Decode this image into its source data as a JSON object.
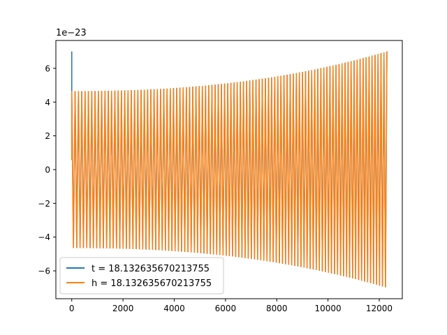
{
  "chart_data": {
    "type": "line",
    "title": "",
    "xlabel": "",
    "ylabel": "",
    "offset_label": "1e−23",
    "xlim": [
      -620,
      12900
    ],
    "ylim": [
      -7.65,
      7.65
    ],
    "x_ticks": [
      0,
      2000,
      4000,
      6000,
      8000,
      10000,
      12000
    ],
    "x_tick_labels": [
      "0",
      "2000",
      "4000",
      "6000",
      "8000",
      "10000",
      "12000"
    ],
    "y_ticks": [
      -6,
      -4,
      -2,
      0,
      2,
      4,
      6
    ],
    "y_tick_labels": [
      "−6",
      "−4",
      "−2",
      "0",
      "2",
      "4",
      "6"
    ],
    "grid": false,
    "legend_position": "lower-left",
    "signal": {
      "x_start": 0,
      "x_end": 12300,
      "start_value": 7.0,
      "start_amplitude": 4.65,
      "end_amplitude": 7.0,
      "x_peak_shift": 300,
      "n_cycles": 200
    },
    "series": [
      {
        "name": "t = 18.132635670213755",
        "color": "#1f77b4"
      },
      {
        "name": "h = 18.132635670213755",
        "color": "#ff7f0e"
      }
    ]
  }
}
